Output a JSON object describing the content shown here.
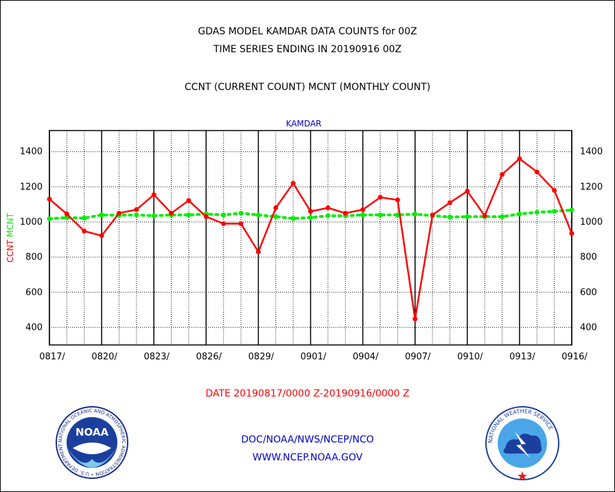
{
  "header": {
    "title1": "GDAS MODEL KAMDAR DATA COUNTS for 00Z",
    "title2": "TIME SERIES ENDING IN 20190916 00Z",
    "subtitle": "CCNT (CURRENT COUNT) MCNT (MONTHLY COUNT)"
  },
  "footer": {
    "date_range": "DATE 20190817/0000 Z-20190916/0000 Z",
    "org": "DOC/NOAA/NWS/NCEP/NCO",
    "url": "WWW.NCEP.NOAA.GOV"
  },
  "logos": {
    "noaa_text": "NOAA",
    "noaa_ring": "NATIONAL OCEANIC AND ATMOSPHERIC ADMINISTRATION • U.S. DEPARTMENT OF COMMERCE •",
    "nws_ring": "NATIONAL WEATHER SERVICE"
  },
  "chart_data": {
    "type": "line",
    "title": "KAMDAR",
    "ylabel_left_parts": [
      "CCNT",
      "MCNT"
    ],
    "ylim": [
      300,
      1520
    ],
    "yticks": [
      400,
      600,
      800,
      1000,
      1200,
      1400
    ],
    "x_tick_labels": [
      "0817/",
      "0820/",
      "0823/",
      "0826/",
      "0829/",
      "0901/",
      "0904/",
      "0907/",
      "0910/",
      "0913/",
      "0916/"
    ],
    "x_day_offsets_of_ticks": [
      0,
      3,
      6,
      9,
      12,
      15,
      18,
      21,
      24,
      27,
      30
    ],
    "grid": true,
    "colors": {
      "ccnt": "#ff0000",
      "mcnt": "#00ee00",
      "title": "#0000cc",
      "org": "#0000cc",
      "date": "#ff0000"
    },
    "series": [
      {
        "name": "CCNT",
        "values": [
          1130,
          1045,
          948,
          922,
          1050,
          1070,
          1155,
          1050,
          1122,
          1030,
          990,
          990,
          830,
          1080,
          1220,
          1060,
          1080,
          1050,
          1070,
          1140,
          1125,
          448,
          1040,
          1110,
          1175,
          1035,
          1270,
          1360,
          1285,
          1180,
          935
        ]
      },
      {
        "name": "MCNT",
        "values": [
          1018,
          1025,
          1022,
          1040,
          1038,
          1040,
          1035,
          1040,
          1040,
          1045,
          1040,
          1050,
          1040,
          1030,
          1020,
          1025,
          1035,
          1035,
          1040,
          1040,
          1040,
          1045,
          1035,
          1028,
          1030,
          1030,
          1030,
          1045,
          1055,
          1060,
          1068
        ]
      }
    ]
  }
}
